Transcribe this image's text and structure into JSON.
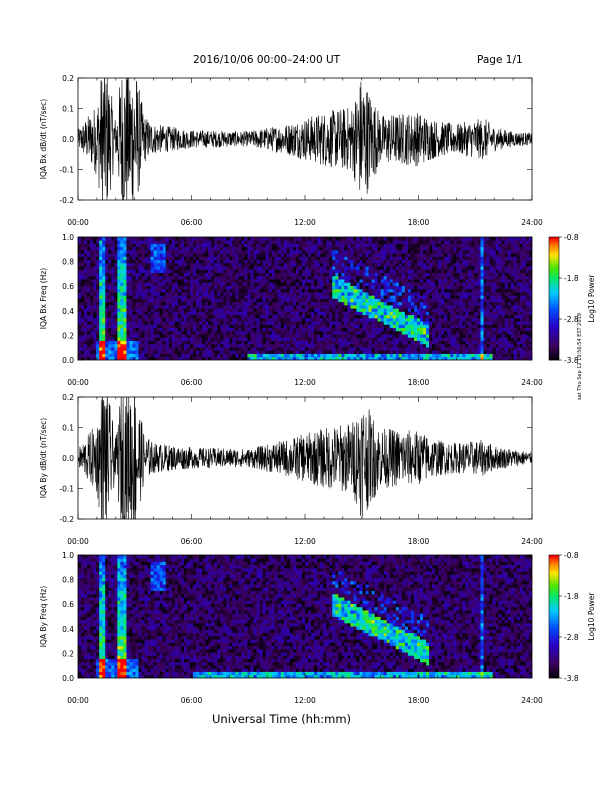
{
  "header": {
    "date_title": "2016/10/06  00:00–24:00 UT",
    "page_label": "Page 1/1"
  },
  "footer": {
    "xlabel": "Universal Time (hh:mm)"
  },
  "side_note": "sat Thu Sep 12 10:56:54 EST 2019",
  "chart_data": [
    {
      "type": "line",
      "ylabel": "IQA Bx dB/dt (nT/sec)",
      "ylim": [
        -0.2,
        0.2
      ],
      "yticks": [
        "-0.2",
        "-0.1",
        "0.0",
        "0.1",
        "0.2"
      ],
      "xticks": [
        "00:00",
        "06:00",
        "12:00",
        "18:00",
        "24:00"
      ],
      "xlim_hours": [
        0,
        24
      ],
      "envelope": {
        "time_hours": [
          0,
          1,
          1.3,
          1.5,
          2,
          2.3,
          3,
          3.5,
          4,
          6,
          9,
          11,
          12,
          13,
          14.5,
          15,
          16,
          18,
          19,
          20,
          21.5,
          22,
          23,
          24
        ],
        "amplitude_nT_per_s": [
          0.03,
          0.12,
          0.25,
          0.25,
          0.06,
          0.25,
          0.25,
          0.08,
          0.05,
          0.03,
          0.025,
          0.05,
          0.07,
          0.09,
          0.11,
          0.22,
          0.08,
          0.09,
          0.06,
          0.05,
          0.07,
          0.04,
          0.025,
          0.02
        ]
      },
      "color": "#000000"
    },
    {
      "type": "heatmap",
      "ylabel": "IQA Bx Freq (Hz)",
      "ylim": [
        0.0,
        1.0
      ],
      "yticks": [
        "0.0",
        "0.2",
        "0.4",
        "0.6",
        "0.8",
        "1.0"
      ],
      "xticks": [
        "00:00",
        "06:00",
        "12:00",
        "18:00",
        "24:00"
      ],
      "colorbar": {
        "label": "Log10 Power",
        "ticks": [
          "-0.8",
          "-1.8",
          "-2.8",
          "-3.8"
        ],
        "range": [
          -3.8,
          -0.8
        ]
      },
      "features": {
        "background_log_power": -3.4,
        "low_freq_band_hours": [
          9,
          22
        ],
        "bursts_hours": [
          1.3,
          2.3
        ],
        "emission_arc": {
          "start_hour": 13.5,
          "end_hour": 18.5,
          "freq_start_hz": 0.6,
          "freq_end_hz": 0.2
        },
        "line_hour": 21.3
      }
    },
    {
      "type": "line",
      "ylabel": "IQA By dB/dt (nT/sec)",
      "ylim": [
        -0.2,
        0.2
      ],
      "yticks": [
        "-0.2",
        "-0.1",
        "0.0",
        "0.1",
        "0.2"
      ],
      "xticks": [
        "00:00",
        "06:00",
        "12:00",
        "18:00",
        "24:00"
      ],
      "xlim_hours": [
        0,
        24
      ],
      "envelope": {
        "time_hours": [
          0,
          1,
          1.3,
          1.5,
          2,
          2.3,
          3,
          3.5,
          4,
          6,
          9,
          11,
          12,
          13,
          14.5,
          15,
          16,
          18,
          19,
          20,
          21.5,
          22,
          23,
          24
        ],
        "amplitude_nT_per_s": [
          0.03,
          0.12,
          0.25,
          0.25,
          0.06,
          0.25,
          0.25,
          0.08,
          0.05,
          0.035,
          0.03,
          0.06,
          0.08,
          0.1,
          0.12,
          0.2,
          0.1,
          0.09,
          0.06,
          0.05,
          0.06,
          0.04,
          0.03,
          0.02
        ]
      },
      "color": "#000000"
    },
    {
      "type": "heatmap",
      "ylabel": "IQA By Freq (Hz)",
      "ylim": [
        0.0,
        1.0
      ],
      "yticks": [
        "0.0",
        "0.2",
        "0.4",
        "0.6",
        "0.8",
        "1.0"
      ],
      "xticks": [
        "00:00",
        "06:00",
        "12:00",
        "18:00",
        "24:00"
      ],
      "colorbar": {
        "label": "Log10 Power",
        "ticks": [
          "-0.8",
          "-1.8",
          "-2.8",
          "-3.8"
        ],
        "range": [
          -3.8,
          -0.8
        ]
      },
      "features": {
        "background_log_power": -3.4,
        "low_freq_band_hours": [
          6,
          22
        ],
        "bursts_hours": [
          1.3,
          2.3
        ],
        "emission_arc": {
          "start_hour": 13.5,
          "end_hour": 18.5,
          "freq_start_hz": 0.6,
          "freq_end_hz": 0.2
        },
        "line_hour": 21.3
      }
    }
  ]
}
